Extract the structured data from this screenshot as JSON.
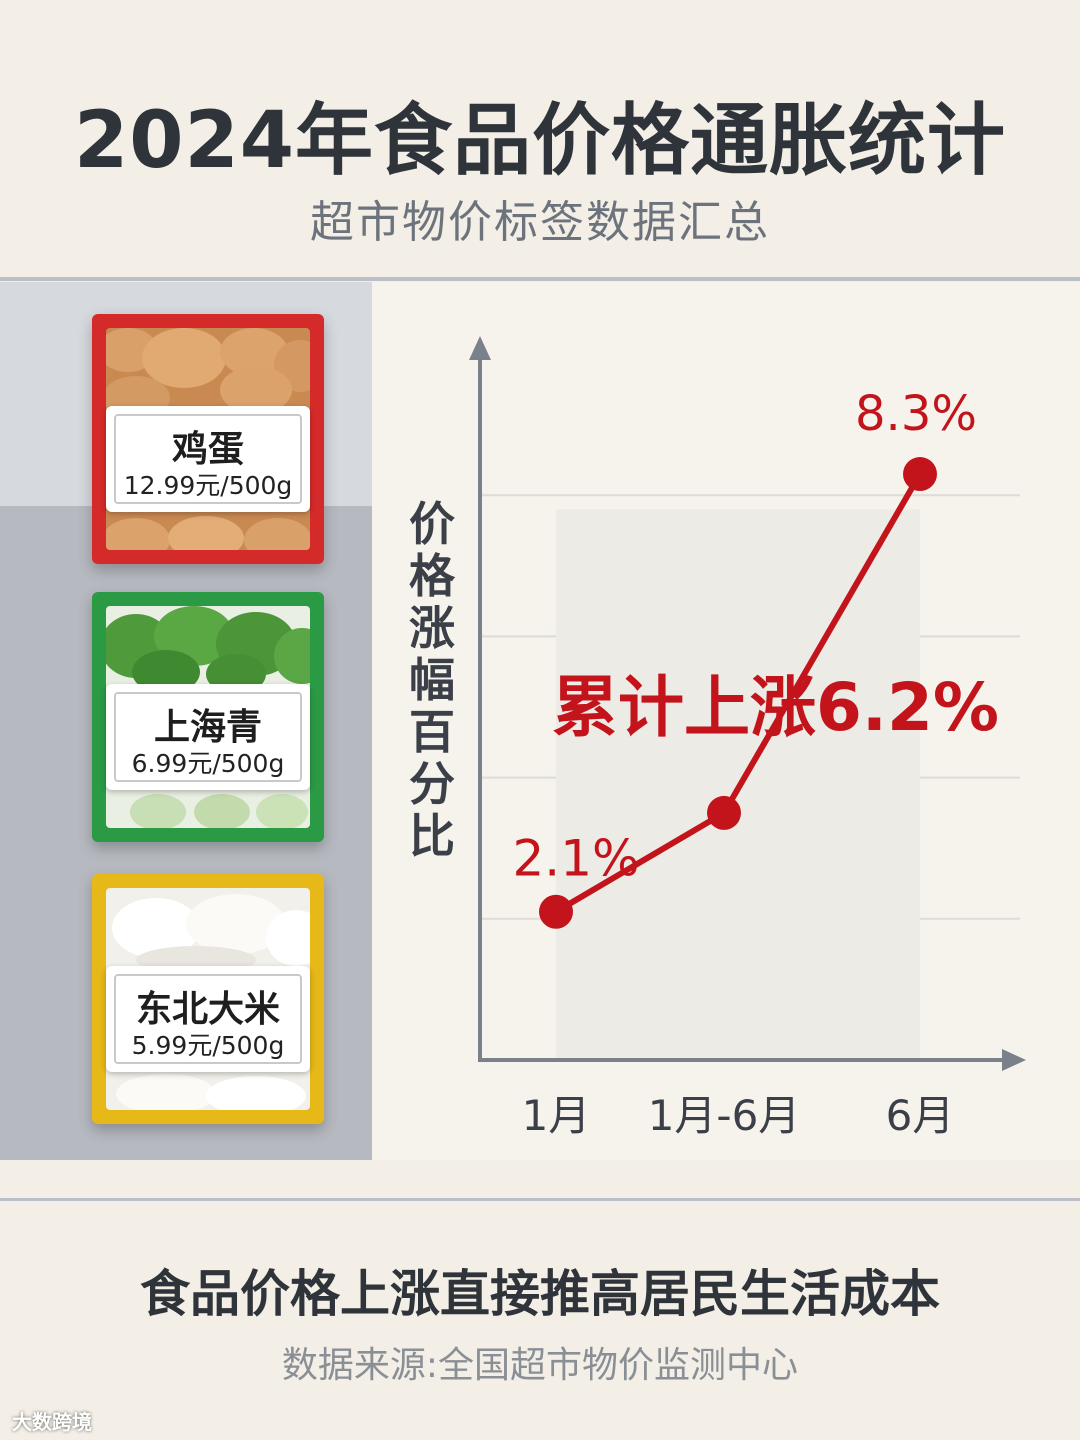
{
  "header": {
    "title": "2024年食品价格通胀统计",
    "subtitle": "超市物价标签数据汇总"
  },
  "products": [
    {
      "name": "鸡蛋",
      "price": "12.99元/500g",
      "color": "#d42a2a"
    },
    {
      "name": "上海青",
      "price": "6.99元/500g",
      "color": "#2a9a45"
    },
    {
      "name": "东北大米",
      "price": "5.99元/500g",
      "color": "#e6b818"
    }
  ],
  "chart_data": {
    "type": "line",
    "categories": [
      "1月",
      "1月-6月",
      "6月"
    ],
    "values": [
      2.1,
      3.5,
      8.3
    ],
    "ylabel": "价格涨幅百分比",
    "data_labels": [
      "2.1%",
      "",
      "8.3%"
    ],
    "annotation": "累计上涨6.2%",
    "ylim": [
      0,
      10
    ],
    "grid": true,
    "line_color": "#c3141c"
  },
  "footer": {
    "headline": "食品价格上涨直接推高居民生活成本",
    "source": "数据来源:全国超市物价监测中心"
  },
  "watermark": "大数跨境"
}
